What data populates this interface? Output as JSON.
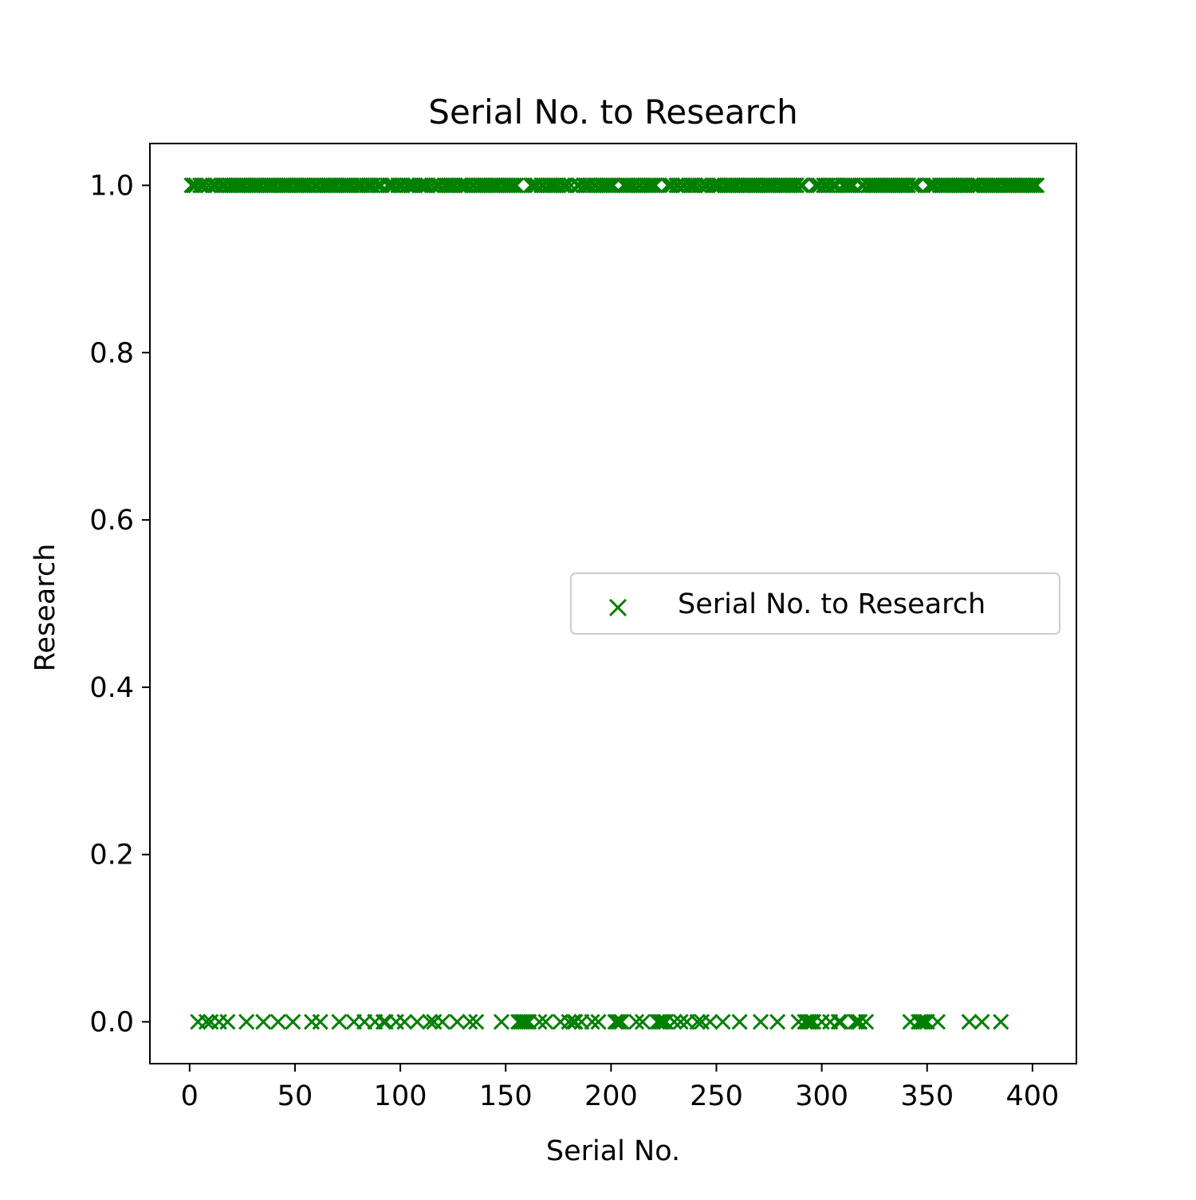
{
  "chart_data": {
    "type": "scatter",
    "title": "Serial No. to Research",
    "xlabel": "Serial No.",
    "ylabel": "Research",
    "xlim": [
      -18.85,
      420.85
    ],
    "ylim": [
      -0.05,
      1.05
    ],
    "xticks": [
      0,
      50,
      100,
      150,
      200,
      250,
      300,
      350,
      400
    ],
    "xtick_labels": [
      "0",
      "50",
      "100",
      "150",
      "200",
      "250",
      "300",
      "350",
      "400"
    ],
    "yticks": [
      0.0,
      0.2,
      0.4,
      0.6,
      0.8,
      1.0
    ],
    "ytick_labels": [
      "0.0",
      "0.2",
      "0.4",
      "0.6",
      "0.8",
      "1.0"
    ],
    "marker": "x",
    "color": "#008000",
    "grid": false,
    "legend_position": "center-right",
    "series": [
      {
        "name": "Serial No. to Research",
        "points_y1": [
          1,
          2,
          3,
          5,
          6,
          7,
          9,
          11,
          12,
          13,
          15,
          16,
          17,
          19,
          20,
          21,
          22,
          23,
          24,
          25,
          26,
          28,
          29,
          30,
          31,
          32,
          33,
          34,
          36,
          37,
          38,
          39,
          40,
          41,
          43,
          44,
          45,
          46,
          47,
          48,
          50,
          51,
          52,
          53,
          54,
          55,
          56,
          57,
          59,
          60,
          61,
          63,
          64,
          65,
          66,
          67,
          68,
          69,
          70,
          72,
          73,
          74,
          75,
          76,
          77,
          79,
          80,
          81,
          82,
          84,
          85,
          86,
          87,
          89,
          90,
          91,
          94,
          95,
          96,
          97,
          99,
          100,
          101,
          103,
          104,
          105,
          106,
          107,
          109,
          110,
          111,
          112,
          113,
          115,
          117,
          118,
          119,
          121,
          122,
          123,
          124,
          125,
          126,
          128,
          129,
          130,
          131,
          132,
          134,
          135,
          137,
          138,
          139,
          140,
          141,
          142,
          143,
          144,
          145,
          146,
          147,
          149,
          150,
          151,
          152,
          153,
          154,
          155,
          162,
          163,
          164,
          165,
          167,
          168,
          170,
          171,
          172,
          173,
          174,
          175,
          177,
          178,
          179,
          181,
          184,
          185,
          187,
          188,
          189,
          190,
          192,
          193,
          195,
          196,
          197,
          198,
          199,
          200,
          201,
          206,
          207,
          208,
          209,
          210,
          211,
          213,
          214,
          216,
          217,
          218,
          219,
          220,
          221,
          227,
          228,
          229,
          231,
          232,
          234,
          235,
          237,
          238,
          239,
          240,
          242,
          244,
          245,
          246,
          248,
          249,
          250,
          251,
          252,
          254,
          255,
          256,
          257,
          258,
          259,
          260,
          262,
          263,
          264,
          265,
          266,
          267,
          268,
          269,
          270,
          272,
          273,
          274,
          275,
          276,
          277,
          278,
          280,
          281,
          282,
          283,
          284,
          285,
          286,
          287,
          288,
          290,
          291,
          297,
          298,
          299,
          301,
          302,
          303,
          305,
          306,
          307,
          310,
          311,
          312,
          313,
          314,
          315,
          319,
          320,
          322,
          323,
          324,
          325,
          326,
          327,
          328,
          329,
          330,
          331,
          332,
          333,
          334,
          335,
          336,
          337,
          338,
          339,
          340,
          341,
          343,
          344,
          345,
          351,
          352,
          353,
          354,
          356,
          357,
          358,
          359,
          360,
          361,
          362,
          363,
          364,
          365,
          366,
          367,
          368,
          369,
          371,
          372,
          373,
          374,
          375,
          377,
          378,
          379,
          380,
          381,
          382,
          383,
          384,
          386,
          387,
          388,
          389,
          390,
          391,
          392,
          393,
          394,
          395,
          396,
          397,
          398,
          399,
          400,
          401,
          402
        ],
        "points_y0": [
          4,
          8,
          10,
          14,
          18,
          27,
          35,
          42,
          49,
          58,
          62,
          71,
          78,
          83,
          88,
          92,
          93,
          98,
          102,
          108,
          114,
          116,
          120,
          127,
          133,
          136,
          148,
          156,
          157,
          158,
          159,
          160,
          161,
          166,
          169,
          176,
          180,
          182,
          183,
          186,
          191,
          194,
          202,
          203,
          204,
          205,
          212,
          215,
          222,
          223,
          224,
          225,
          226,
          230,
          233,
          236,
          241,
          243,
          247,
          253,
          261,
          271,
          279,
          289,
          292,
          293,
          294,
          295,
          296,
          300,
          304,
          308,
          309,
          316,
          317,
          318,
          321,
          342,
          346,
          347,
          348,
          349,
          350,
          355,
          370,
          376,
          385
        ]
      }
    ]
  }
}
